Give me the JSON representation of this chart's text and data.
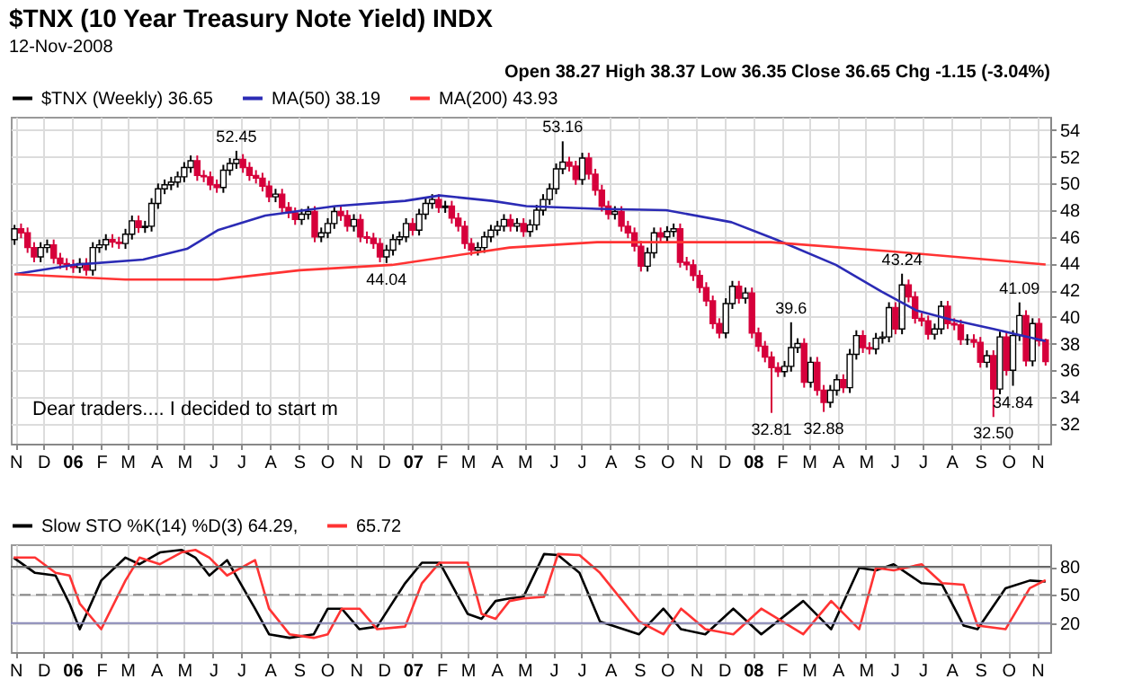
{
  "chart_data": [
    {
      "type": "candlestick",
      "title": "$TNX (10 Year Treasury Note Yield) INDX",
      "subtitle": "12-Nov-2008",
      "annotations": [
        "Open 38.27  High 38.37  Low 36.35  Close 36.65  Chg -1.15 (-3.04%)",
        "Dear traders.... I decided to start m",
        {
          "text": "52.45",
          "x": "2006-06-26",
          "y": 52.45
        },
        {
          "text": "53.16",
          "x": "2007-06-11",
          "y": 53.16
        },
        {
          "text": "44.04",
          "x": "2006-12-04",
          "y": 44.04
        },
        {
          "text": "39.6",
          "x": "2008-02-11",
          "y": 39.6
        },
        {
          "text": "43.24",
          "x": "2008-06-09",
          "y": 43.24
        },
        {
          "text": "41.09",
          "x": "2008-10-13",
          "y": 41.09
        },
        {
          "text": "34.84",
          "x": "2008-10-06",
          "y": 34.84
        },
        {
          "text": "32.81",
          "x": "2008-01-21",
          "y": 32.81
        },
        {
          "text": "32.88",
          "x": "2008-03-17",
          "y": 32.88
        },
        {
          "text": "32.50",
          "x": "2008-09-15",
          "y": 32.5
        }
      ],
      "x": [
        "2005-10-31",
        "2005-11-07",
        "2005-11-14",
        "2005-11-21",
        "2005-11-28",
        "2005-12-05",
        "2005-12-12",
        "2005-12-19",
        "2005-12-26",
        "2006-01-02",
        "2006-01-09",
        "2006-01-16",
        "2006-01-23",
        "2006-01-30",
        "2006-02-06",
        "2006-02-13",
        "2006-02-20",
        "2006-02-27",
        "2006-03-06",
        "2006-03-13",
        "2006-03-20",
        "2006-03-27",
        "2006-04-03",
        "2006-04-10",
        "2006-04-17",
        "2006-04-24",
        "2006-05-01",
        "2006-05-08",
        "2006-05-15",
        "2006-05-22",
        "2006-05-29",
        "2006-06-05",
        "2006-06-12",
        "2006-06-19",
        "2006-06-26",
        "2006-07-03",
        "2006-07-10",
        "2006-07-17",
        "2006-07-24",
        "2006-07-31",
        "2006-08-07",
        "2006-08-14",
        "2006-08-21",
        "2006-08-28",
        "2006-09-04",
        "2006-09-11",
        "2006-09-18",
        "2006-09-25",
        "2006-10-02",
        "2006-10-09",
        "2006-10-16",
        "2006-10-23",
        "2006-10-30",
        "2006-11-06",
        "2006-11-13",
        "2006-11-20",
        "2006-11-27",
        "2006-12-04",
        "2006-12-11",
        "2006-12-18",
        "2006-12-25",
        "2007-01-01",
        "2007-01-08",
        "2007-01-15",
        "2007-01-22",
        "2007-01-29",
        "2007-02-05",
        "2007-02-12",
        "2007-02-19",
        "2007-02-26",
        "2007-03-05",
        "2007-03-12",
        "2007-03-19",
        "2007-03-26",
        "2007-04-02",
        "2007-04-09",
        "2007-04-16",
        "2007-04-23",
        "2007-04-30",
        "2007-05-07",
        "2007-05-14",
        "2007-05-21",
        "2007-05-28",
        "2007-06-04",
        "2007-06-11",
        "2007-06-18",
        "2007-06-25",
        "2007-07-02",
        "2007-07-09",
        "2007-07-16",
        "2007-07-23",
        "2007-07-30",
        "2007-08-06",
        "2007-08-13",
        "2007-08-20",
        "2007-08-27",
        "2007-09-03",
        "2007-09-10",
        "2007-09-17",
        "2007-09-24",
        "2007-10-01",
        "2007-10-08",
        "2007-10-15",
        "2007-10-22",
        "2007-10-29",
        "2007-11-05",
        "2007-11-12",
        "2007-11-19",
        "2007-11-26",
        "2007-12-03",
        "2007-12-10",
        "2007-12-17",
        "2007-12-24",
        "2007-12-31",
        "2008-01-07",
        "2008-01-14",
        "2008-01-21",
        "2008-01-28",
        "2008-02-04",
        "2008-02-11",
        "2008-02-18",
        "2008-02-25",
        "2008-03-03",
        "2008-03-10",
        "2008-03-17",
        "2008-03-24",
        "2008-03-31",
        "2008-04-07",
        "2008-04-14",
        "2008-04-21",
        "2008-04-28",
        "2008-05-05",
        "2008-05-12",
        "2008-05-19",
        "2008-05-26",
        "2008-06-02",
        "2008-06-09",
        "2008-06-16",
        "2008-06-23",
        "2008-06-30",
        "2008-07-07",
        "2008-07-14",
        "2008-07-21",
        "2008-07-28",
        "2008-08-04",
        "2008-08-11",
        "2008-08-18",
        "2008-08-25",
        "2008-09-01",
        "2008-09-08",
        "2008-09-15",
        "2008-09-22",
        "2008-09-29",
        "2008-10-06",
        "2008-10-13",
        "2008-10-20",
        "2008-10-27",
        "2008-11-03",
        "2008-11-10"
      ],
      "series": [
        {
          "name": "$TNX (Weekly) 36.65",
          "type": "candlestick",
          "color": "#000000",
          "colors": [
            "#000000",
            "#d6003b",
            "#d6003b",
            "#d6003b",
            "#000000",
            "#000000",
            "#d6003b",
            "#d6003b",
            "#d6003b",
            "#d6003b",
            "#000000",
            "#d6003b",
            "#000000",
            "#000000",
            "#000000",
            "#d6003b",
            "#d6003b",
            "#000000",
            "#000000",
            "#d6003b",
            "#000000",
            "#000000",
            "#000000",
            "#000000",
            "#000000",
            "#000000",
            "#000000",
            "#000000",
            "#d6003b",
            "#d6003b",
            "#d6003b",
            "#d6003b",
            "#000000",
            "#000000",
            "#000000",
            "#d6003b",
            "#d6003b",
            "#d6003b",
            "#d6003b",
            "#d6003b",
            "#000000",
            "#d6003b",
            "#d6003b",
            "#d6003b",
            "#000000",
            "#000000",
            "#d6003b",
            "#000000",
            "#000000",
            "#000000",
            "#d6003b",
            "#d6003b",
            "#000000",
            "#d6003b",
            "#d6003b",
            "#d6003b",
            "#d6003b",
            "#000000",
            "#000000",
            "#000000",
            "#000000",
            "#d6003b",
            "#000000",
            "#000000",
            "#000000",
            "#d6003b",
            "#000000",
            "#d6003b",
            "#d6003b",
            "#d6003b",
            "#d6003b",
            "#000000",
            "#000000",
            "#000000",
            "#000000",
            "#000000",
            "#d6003b",
            "#000000",
            "#d6003b",
            "#000000",
            "#000000",
            "#000000",
            "#000000",
            "#000000",
            "#000000",
            "#d6003b",
            "#d6003b",
            "#000000",
            "#d6003b",
            "#d6003b",
            "#d6003b",
            "#d6003b",
            "#000000",
            "#d6003b",
            "#d6003b",
            "#d6003b",
            "#d6003b",
            "#000000",
            "#000000",
            "#d6003b",
            "#000000",
            "#000000",
            "#d6003b",
            "#d6003b",
            "#d6003b",
            "#d6003b",
            "#d6003b",
            "#d6003b",
            "#d6003b",
            "#000000",
            "#000000",
            "#d6003b",
            "#000000",
            "#d6003b",
            "#d6003b",
            "#d6003b",
            "#d6003b",
            "#d6003b",
            "#000000",
            "#000000",
            "#000000",
            "#d6003b",
            "#000000",
            "#d6003b",
            "#d6003b",
            "#000000",
            "#000000",
            "#d6003b",
            "#000000",
            "#000000",
            "#d6003b",
            "#d6003b",
            "#000000",
            "#000000",
            "#000000",
            "#d6003b",
            "#000000",
            "#d6003b",
            "#d6003b",
            "#d6003b",
            "#d6003b",
            "#000000",
            "#000000",
            "#d6003b",
            "#d6003b",
            "#d6003b",
            "#000000",
            "#d6003b",
            "#d6003b",
            "#000000",
            "#d6003b",
            "#000000",
            "#d6003b",
            "#000000",
            "#000000",
            "#d6003b",
            "#000000",
            "#d6003b",
            "#d6003b"
          ],
          "ohlc": [
            [
              45.8,
              46.9,
              45.4,
              46.6
            ],
            [
              46.6,
              47.0,
              45.9,
              46.3
            ],
            [
              46.3,
              46.7,
              44.8,
              45.2
            ],
            [
              45.2,
              45.6,
              44.1,
              44.5
            ],
            [
              44.5,
              45.6,
              44.1,
              45.2
            ],
            [
              45.2,
              45.8,
              44.8,
              45.4
            ],
            [
              45.4,
              45.8,
              44.0,
              44.4
            ],
            [
              44.4,
              44.8,
              43.6,
              44.0
            ],
            [
              44.0,
              44.4,
              43.5,
              43.9
            ],
            [
              43.9,
              44.3,
              43.3,
              43.7
            ],
            [
              43.7,
              44.4,
              43.3,
              44.0
            ],
            [
              44.0,
              44.4,
              43.1,
              43.5
            ],
            [
              43.5,
              45.6,
              43.1,
              45.2
            ],
            [
              45.2,
              45.8,
              44.8,
              45.4
            ],
            [
              45.4,
              46.2,
              45.0,
              45.8
            ],
            [
              45.8,
              46.2,
              45.2,
              45.6
            ],
            [
              45.6,
              46.0,
              45.1,
              45.5
            ],
            [
              45.5,
              46.6,
              45.1,
              46.2
            ],
            [
              46.2,
              47.6,
              45.8,
              47.2
            ],
            [
              47.2,
              47.6,
              46.3,
              46.7
            ],
            [
              46.7,
              47.2,
              46.3,
              46.8
            ],
            [
              46.8,
              48.9,
              46.4,
              48.5
            ],
            [
              48.5,
              50.0,
              48.1,
              49.6
            ],
            [
              49.6,
              50.3,
              49.2,
              49.9
            ],
            [
              49.9,
              50.5,
              49.5,
              50.1
            ],
            [
              50.1,
              50.9,
              49.7,
              50.5
            ],
            [
              50.5,
              51.6,
              50.1,
              51.2
            ],
            [
              51.2,
              52.1,
              50.8,
              51.7
            ],
            [
              51.7,
              52.1,
              50.2,
              50.6
            ],
            [
              50.6,
              51.0,
              50.1,
              50.5
            ],
            [
              50.5,
              50.9,
              49.5,
              49.9
            ],
            [
              49.9,
              50.3,
              49.3,
              49.7
            ],
            [
              49.7,
              51.4,
              49.3,
              51.0
            ],
            [
              51.0,
              51.9,
              50.6,
              51.5
            ],
            [
              51.5,
              52.45,
              51.1,
              51.8
            ],
            [
              51.8,
              52.2,
              50.8,
              51.2
            ],
            [
              51.2,
              51.6,
              50.2,
              50.6
            ],
            [
              50.6,
              51.0,
              50.0,
              50.4
            ],
            [
              50.4,
              50.8,
              49.4,
              49.8
            ],
            [
              49.8,
              50.2,
              48.6,
              49.0
            ],
            [
              49.0,
              49.6,
              48.6,
              49.2
            ],
            [
              49.2,
              49.6,
              47.8,
              48.2
            ],
            [
              48.2,
              48.6,
              47.4,
              47.8
            ],
            [
              47.8,
              48.2,
              46.9,
              47.3
            ],
            [
              47.3,
              48.1,
              46.9,
              47.7
            ],
            [
              47.7,
              48.3,
              47.3,
              47.9
            ],
            [
              47.9,
              48.3,
              45.6,
              46.0
            ],
            [
              46.0,
              46.7,
              45.6,
              46.3
            ],
            [
              46.3,
              47.4,
              45.9,
              47.0
            ],
            [
              47.0,
              48.3,
              46.6,
              47.9
            ],
            [
              47.9,
              48.3,
              47.2,
              47.6
            ],
            [
              47.6,
              48.0,
              46.4,
              46.8
            ],
            [
              46.8,
              47.7,
              46.4,
              47.3
            ],
            [
              47.3,
              47.7,
              45.6,
              46.0
            ],
            [
              46.0,
              46.4,
              45.5,
              45.9
            ],
            [
              45.9,
              46.3,
              45.1,
              45.5
            ],
            [
              45.5,
              45.9,
              44.1,
              44.5
            ],
            [
              44.5,
              45.4,
              44.04,
              45.0
            ],
            [
              45.0,
              46.2,
              44.6,
              45.8
            ],
            [
              45.8,
              46.4,
              45.4,
              46.0
            ],
            [
              46.0,
              47.4,
              45.6,
              47.0
            ],
            [
              47.0,
              47.4,
              46.1,
              46.5
            ],
            [
              46.5,
              48.1,
              46.1,
              47.7
            ],
            [
              47.7,
              48.9,
              47.3,
              48.5
            ],
            [
              48.5,
              49.2,
              48.1,
              48.8
            ],
            [
              48.8,
              49.2,
              47.8,
              48.2
            ],
            [
              48.2,
              48.7,
              47.8,
              48.3
            ],
            [
              48.3,
              48.7,
              47.0,
              47.4
            ],
            [
              47.4,
              47.8,
              46.4,
              46.8
            ],
            [
              46.8,
              47.2,
              45.1,
              45.5
            ],
            [
              45.5,
              45.9,
              44.6,
              45.0
            ],
            [
              45.0,
              45.6,
              44.6,
              45.2
            ],
            [
              45.2,
              46.4,
              44.8,
              46.0
            ],
            [
              46.0,
              46.9,
              45.6,
              46.5
            ],
            [
              46.5,
              47.2,
              46.1,
              46.8
            ],
            [
              46.8,
              47.7,
              46.4,
              47.3
            ],
            [
              47.3,
              47.7,
              46.4,
              46.8
            ],
            [
              46.8,
              47.4,
              46.4,
              47.0
            ],
            [
              47.0,
              47.4,
              46.0,
              46.4
            ],
            [
              46.4,
              47.3,
              46.0,
              46.9
            ],
            [
              46.9,
              48.4,
              46.5,
              48.0
            ],
            [
              48.0,
              49.2,
              47.6,
              48.8
            ],
            [
              48.8,
              50.0,
              48.4,
              49.6
            ],
            [
              49.6,
              51.5,
              49.2,
              51.1
            ],
            [
              51.1,
              53.16,
              50.7,
              51.6
            ],
            [
              51.6,
              52.0,
              50.9,
              51.3
            ],
            [
              51.3,
              51.7,
              49.9,
              50.3
            ],
            [
              50.3,
              52.3,
              49.9,
              51.9
            ],
            [
              51.9,
              52.3,
              50.3,
              50.7
            ],
            [
              50.7,
              51.1,
              49.1,
              49.5
            ],
            [
              49.5,
              49.9,
              47.9,
              48.3
            ],
            [
              48.3,
              48.7,
              47.3,
              47.7
            ],
            [
              47.7,
              48.3,
              47.3,
              47.9
            ],
            [
              47.9,
              48.3,
              46.4,
              46.8
            ],
            [
              46.8,
              47.2,
              45.9,
              46.3
            ],
            [
              46.3,
              46.7,
              44.9,
              45.3
            ],
            [
              45.3,
              45.7,
              43.4,
              43.8
            ],
            [
              43.8,
              45.2,
              43.4,
              44.8
            ],
            [
              44.8,
              46.7,
              44.4,
              46.3
            ],
            [
              46.3,
              46.7,
              45.6,
              46.0
            ],
            [
              46.0,
              46.8,
              45.6,
              46.4
            ],
            [
              46.4,
              47.0,
              46.0,
              46.6
            ],
            [
              46.6,
              47.0,
              43.7,
              44.1
            ],
            [
              44.1,
              44.5,
              43.5,
              43.9
            ],
            [
              43.9,
              44.3,
              42.7,
              43.1
            ],
            [
              43.1,
              43.5,
              41.8,
              42.2
            ],
            [
              42.2,
              42.6,
              40.8,
              41.2
            ],
            [
              41.2,
              41.6,
              39.1,
              39.5
            ],
            [
              39.5,
              39.9,
              38.4,
              38.8
            ],
            [
              38.8,
              41.4,
              38.4,
              41.0
            ],
            [
              41.0,
              42.7,
              40.6,
              42.3
            ],
            [
              42.3,
              42.7,
              41.0,
              41.4
            ],
            [
              41.4,
              42.2,
              41.0,
              41.8
            ],
            [
              41.8,
              42.2,
              38.4,
              38.8
            ],
            [
              38.8,
              39.2,
              37.4,
              37.8
            ],
            [
              37.8,
              38.2,
              36.6,
              37.0
            ],
            [
              37.0,
              37.4,
              32.81,
              36.2
            ],
            [
              36.2,
              36.6,
              35.5,
              35.9
            ],
            [
              35.9,
              36.7,
              35.5,
              36.3
            ],
            [
              36.3,
              39.6,
              35.9,
              37.7
            ],
            [
              37.7,
              38.4,
              37.3,
              38.0
            ],
            [
              38.0,
              38.4,
              34.7,
              35.1
            ],
            [
              35.1,
              37.0,
              34.7,
              36.6
            ],
            [
              36.6,
              37.0,
              34.1,
              34.5
            ],
            [
              34.5,
              34.9,
              32.88,
              33.6
            ],
            [
              33.6,
              34.9,
              33.2,
              34.5
            ],
            [
              34.5,
              35.7,
              34.1,
              35.3
            ],
            [
              35.3,
              35.7,
              34.3,
              34.7
            ],
            [
              34.7,
              37.6,
              34.3,
              37.2
            ],
            [
              37.2,
              39.0,
              36.8,
              38.6
            ],
            [
              38.6,
              39.0,
              37.3,
              37.7
            ],
            [
              37.7,
              38.1,
              37.2,
              37.6
            ],
            [
              37.6,
              38.8,
              37.2,
              38.4
            ],
            [
              38.4,
              38.9,
              38.0,
              38.5
            ],
            [
              38.5,
              41.1,
              38.1,
              40.7
            ],
            [
              40.7,
              41.1,
              38.7,
              39.1
            ],
            [
              39.1,
              43.24,
              38.7,
              42.4
            ],
            [
              42.4,
              42.8,
              41.1,
              41.5
            ],
            [
              41.5,
              41.9,
              39.5,
              39.9
            ],
            [
              39.9,
              40.3,
              39.3,
              39.7
            ],
            [
              39.7,
              40.1,
              38.3,
              38.7
            ],
            [
              38.7,
              39.5,
              38.3,
              39.1
            ],
            [
              39.1,
              41.2,
              38.7,
              40.8
            ],
            [
              40.8,
              41.2,
              39.1,
              39.5
            ],
            [
              39.5,
              39.9,
              39.0,
              39.4
            ],
            [
              39.4,
              39.8,
              37.9,
              38.3
            ],
            [
              38.3,
              38.7,
              37.9,
              38.3
            ],
            [
              38.3,
              38.7,
              37.7,
              38.1
            ],
            [
              38.1,
              38.5,
              36.2,
              36.6
            ],
            [
              36.6,
              37.5,
              36.2,
              37.1
            ],
            [
              37.1,
              37.5,
              32.5,
              34.6
            ],
            [
              34.6,
              38.9,
              34.2,
              38.5
            ],
            [
              38.5,
              38.9,
              35.6,
              36.0
            ],
            [
              36.0,
              39.0,
              34.84,
              38.6
            ],
            [
              38.6,
              41.09,
              38.2,
              40.1
            ],
            [
              40.1,
              40.5,
              36.3,
              36.7
            ],
            [
              36.7,
              39.9,
              36.3,
              39.5
            ],
            [
              39.5,
              39.9,
              37.8,
              38.2
            ],
            [
              38.27,
              38.37,
              36.35,
              36.65
            ]
          ]
        },
        {
          "name": "MA(50) 38.19",
          "type": "line",
          "color": "#2b2bb5",
          "x": [
            "2005-10-31",
            "2006-01-02",
            "2006-03-18",
            "2006-05-04",
            "2006-06-06",
            "2006-07-27",
            "2006-10-10",
            "2006-12-24",
            "2007-01-30",
            "2007-03-27",
            "2007-05-03",
            "2007-07-18",
            "2007-09-30",
            "2007-12-09",
            "2008-01-26",
            "2008-03-30",
            "2008-05-18",
            "2008-06-24",
            "2008-07-31",
            "2008-09-15",
            "2008-11-10"
          ],
          "values": [
            43.2,
            43.9,
            44.3,
            45.1,
            46.5,
            47.6,
            48.3,
            48.7,
            49.1,
            48.7,
            48.3,
            48.1,
            48.0,
            47.1,
            45.8,
            43.9,
            41.9,
            40.5,
            39.8,
            39.1,
            38.19
          ]
        },
        {
          "name": "MA(200) 43.93",
          "type": "line",
          "color": "#ff3333",
          "x": [
            "2005-10-31",
            "2006-02-27",
            "2006-06-06",
            "2006-09-02",
            "2006-12-10",
            "2007-04-15",
            "2007-07-18",
            "2008-01-20",
            "2008-05-30",
            "2008-11-10"
          ],
          "values": [
            43.2,
            42.8,
            42.8,
            43.5,
            43.9,
            45.2,
            45.6,
            45.6,
            44.9,
            43.93
          ]
        }
      ],
      "xlim": [
        "2005-10-27",
        "2008-11-15"
      ],
      "xticks": [
        {
          "value": "2005-11-01",
          "label": "N"
        },
        {
          "value": "2005-12-01",
          "label": "D"
        },
        {
          "value": "2006-01-01",
          "label": "06"
        },
        {
          "value": "2006-02-01",
          "label": "F"
        },
        {
          "value": "2006-03-01",
          "label": "M"
        },
        {
          "value": "2006-04-01",
          "label": "A"
        },
        {
          "value": "2006-05-01",
          "label": "M"
        },
        {
          "value": "2006-06-01",
          "label": "J"
        },
        {
          "value": "2006-07-01",
          "label": "J"
        },
        {
          "value": "2006-08-01",
          "label": "A"
        },
        {
          "value": "2006-09-01",
          "label": "S"
        },
        {
          "value": "2006-10-01",
          "label": "O"
        },
        {
          "value": "2006-11-01",
          "label": "N"
        },
        {
          "value": "2006-12-01",
          "label": "D"
        },
        {
          "value": "2007-01-01",
          "label": "07"
        },
        {
          "value": "2007-02-01",
          "label": "F"
        },
        {
          "value": "2007-03-01",
          "label": "M"
        },
        {
          "value": "2007-04-01",
          "label": "A"
        },
        {
          "value": "2007-05-01",
          "label": "M"
        },
        {
          "value": "2007-06-01",
          "label": "J"
        },
        {
          "value": "2007-07-01",
          "label": "J"
        },
        {
          "value": "2007-08-01",
          "label": "A"
        },
        {
          "value": "2007-09-01",
          "label": "S"
        },
        {
          "value": "2007-10-01",
          "label": "O"
        },
        {
          "value": "2007-11-01",
          "label": "N"
        },
        {
          "value": "2007-12-01",
          "label": "D"
        },
        {
          "value": "2008-01-01",
          "label": "08"
        },
        {
          "value": "2008-02-01",
          "label": "F"
        },
        {
          "value": "2008-03-01",
          "label": "M"
        },
        {
          "value": "2008-04-01",
          "label": "A"
        },
        {
          "value": "2008-05-01",
          "label": "M"
        },
        {
          "value": "2008-06-01",
          "label": "J"
        },
        {
          "value": "2008-07-01",
          "label": "J"
        },
        {
          "value": "2008-08-01",
          "label": "A"
        },
        {
          "value": "2008-09-01",
          "label": "S"
        },
        {
          "value": "2008-10-01",
          "label": "O"
        },
        {
          "value": "2008-11-01",
          "label": "N"
        }
      ],
      "ylim": [
        30.5,
        55
      ],
      "yticks": [
        32,
        34,
        36,
        38,
        40,
        42,
        44,
        46,
        48,
        50,
        52,
        54
      ],
      "grid": true,
      "legend": "top"
    },
    {
      "type": "line",
      "series": [
        {
          "name": "Slow STO %K(14) %D(3) 64.29,",
          "color": "#000000",
          "x": [
            "2005-10-30",
            "2005-11-22",
            "2005-12-14",
            "2005-12-29",
            "2006-01-09",
            "2006-02-01",
            "2006-02-27",
            "2006-03-14",
            "2006-04-05",
            "2006-04-28",
            "2006-05-13",
            "2006-05-28",
            "2006-06-16",
            "2006-07-16",
            "2006-07-31",
            "2006-08-22",
            "2006-09-17",
            "2006-10-02",
            "2006-10-17",
            "2006-11-05",
            "2006-11-24",
            "2006-12-24",
            "2007-01-11",
            "2007-01-30",
            "2007-03-01",
            "2007-03-16",
            "2007-03-31",
            "2007-04-15",
            "2007-04-30",
            "2007-05-22",
            "2007-06-06",
            "2007-06-29",
            "2007-07-21",
            "2007-09-01",
            "2007-09-27",
            "2007-10-16",
            "2007-11-11",
            "2007-12-11",
            "2008-01-10",
            "2008-02-24",
            "2008-03-25",
            "2008-04-24",
            "2008-05-12",
            "2008-05-31",
            "2008-06-30",
            "2008-07-22",
            "2008-08-14",
            "2008-08-29",
            "2008-09-28",
            "2008-10-24",
            "2008-11-10"
          ],
          "values": [
            89.8,
            73.5,
            70.7,
            40.7,
            13.4,
            65.3,
            89.8,
            82.7,
            95.3,
            98,
            89.8,
            70.7,
            87.1,
            35.3,
            8.0,
            4.2,
            8.0,
            35.3,
            35.3,
            13.4,
            16.2,
            62.5,
            84.4,
            84.4,
            29.8,
            24.4,
            43.5,
            46.2,
            48,
            93.6,
            92.5,
            73.5,
            21.6,
            8.0,
            35.3,
            13.4,
            8.0,
            35.3,
            8.0,
            43.5,
            13.4,
            78.9,
            76.2,
            82.7,
            62.5,
            60.9,
            17.3,
            13.4,
            57.1,
            65.3,
            64.29
          ]
        },
        {
          "name": "65.72",
          "color": "#ff3333",
          "x": [
            "2005-10-30",
            "2005-11-22",
            "2005-12-14",
            "2005-12-29",
            "2006-01-09",
            "2006-02-01",
            "2006-02-27",
            "2006-03-14",
            "2006-04-05",
            "2006-04-28",
            "2006-05-13",
            "2006-05-28",
            "2006-06-16",
            "2006-07-16",
            "2006-07-31",
            "2006-08-22",
            "2006-09-17",
            "2006-10-02",
            "2006-10-17",
            "2006-11-05",
            "2006-11-24",
            "2006-12-24",
            "2007-01-11",
            "2007-01-30",
            "2007-03-01",
            "2007-03-16",
            "2007-03-31",
            "2007-04-15",
            "2007-04-30",
            "2007-05-22",
            "2007-06-06",
            "2007-06-29",
            "2007-07-21",
            "2007-09-01",
            "2007-09-27",
            "2007-10-16",
            "2007-11-11",
            "2007-12-11",
            "2008-01-10",
            "2008-02-24",
            "2008-03-25",
            "2008-04-24",
            "2008-05-12",
            "2008-05-31",
            "2008-06-30",
            "2008-07-22",
            "2008-08-14",
            "2008-08-29",
            "2008-09-28",
            "2008-10-24",
            "2008-11-10"
          ],
          "values": [
            89.8,
            89.8,
            73.5,
            70.7,
            40.7,
            13.4,
            65.3,
            89.8,
            82.7,
            95.3,
            98,
            89.8,
            70.7,
            87.1,
            35.3,
            8.0,
            4.2,
            8.0,
            35.3,
            35.3,
            13.4,
            16.2,
            62.5,
            84.4,
            84.4,
            29.8,
            24.4,
            43.5,
            46.2,
            48,
            93.6,
            92.5,
            73.5,
            21.6,
            8.0,
            35.3,
            13.4,
            8.0,
            35.3,
            8.0,
            43.5,
            13.4,
            78.9,
            76.2,
            82.7,
            62.5,
            60.9,
            17.3,
            13.4,
            57.1,
            65.72
          ]
        }
      ],
      "xlim": [
        "2005-10-27",
        "2008-11-15"
      ],
      "xticks": [
        {
          "value": "2005-11-01",
          "label": "N"
        },
        {
          "value": "2005-12-01",
          "label": "D"
        },
        {
          "value": "2006-01-01",
          "label": "06"
        },
        {
          "value": "2006-02-01",
          "label": "F"
        },
        {
          "value": "2006-03-01",
          "label": "M"
        },
        {
          "value": "2006-04-01",
          "label": "A"
        },
        {
          "value": "2006-05-01",
          "label": "M"
        },
        {
          "value": "2006-06-01",
          "label": "J"
        },
        {
          "value": "2006-07-01",
          "label": "J"
        },
        {
          "value": "2006-08-01",
          "label": "A"
        },
        {
          "value": "2006-09-01",
          "label": "S"
        },
        {
          "value": "2006-10-01",
          "label": "O"
        },
        {
          "value": "2006-11-01",
          "label": "N"
        },
        {
          "value": "2006-12-01",
          "label": "D"
        },
        {
          "value": "2007-01-01",
          "label": "07"
        },
        {
          "value": "2007-02-01",
          "label": "F"
        },
        {
          "value": "2007-03-01",
          "label": "M"
        },
        {
          "value": "2007-04-01",
          "label": "A"
        },
        {
          "value": "2007-05-01",
          "label": "M"
        },
        {
          "value": "2007-06-01",
          "label": "J"
        },
        {
          "value": "2007-07-01",
          "label": "J"
        },
        {
          "value": "2007-08-01",
          "label": "A"
        },
        {
          "value": "2007-09-01",
          "label": "S"
        },
        {
          "value": "2007-10-01",
          "label": "O"
        },
        {
          "value": "2007-11-01",
          "label": "N"
        },
        {
          "value": "2007-12-01",
          "label": "D"
        },
        {
          "value": "2008-01-01",
          "label": "08"
        },
        {
          "value": "2008-02-01",
          "label": "F"
        },
        {
          "value": "2008-03-01",
          "label": "M"
        },
        {
          "value": "2008-04-01",
          "label": "A"
        },
        {
          "value": "2008-05-01",
          "label": "M"
        },
        {
          "value": "2008-06-01",
          "label": "J"
        },
        {
          "value": "2008-07-01",
          "label": "J"
        },
        {
          "value": "2008-08-01",
          "label": "A"
        },
        {
          "value": "2008-09-01",
          "label": "S"
        },
        {
          "value": "2008-10-01",
          "label": "O"
        },
        {
          "value": "2008-11-01",
          "label": "N"
        }
      ],
      "ylim": [
        -11,
        104
      ],
      "yticks": [
        20,
        50,
        80
      ],
      "ref_lines": [
        {
          "axis": "y",
          "value": 80,
          "color": "#666666"
        },
        {
          "axis": "y",
          "value": 50,
          "color": "#888888",
          "line_style": "dashed"
        },
        {
          "axis": "y",
          "value": 20,
          "color": "#8a8ab8"
        }
      ],
      "grid": true,
      "legend": "top"
    }
  ]
}
